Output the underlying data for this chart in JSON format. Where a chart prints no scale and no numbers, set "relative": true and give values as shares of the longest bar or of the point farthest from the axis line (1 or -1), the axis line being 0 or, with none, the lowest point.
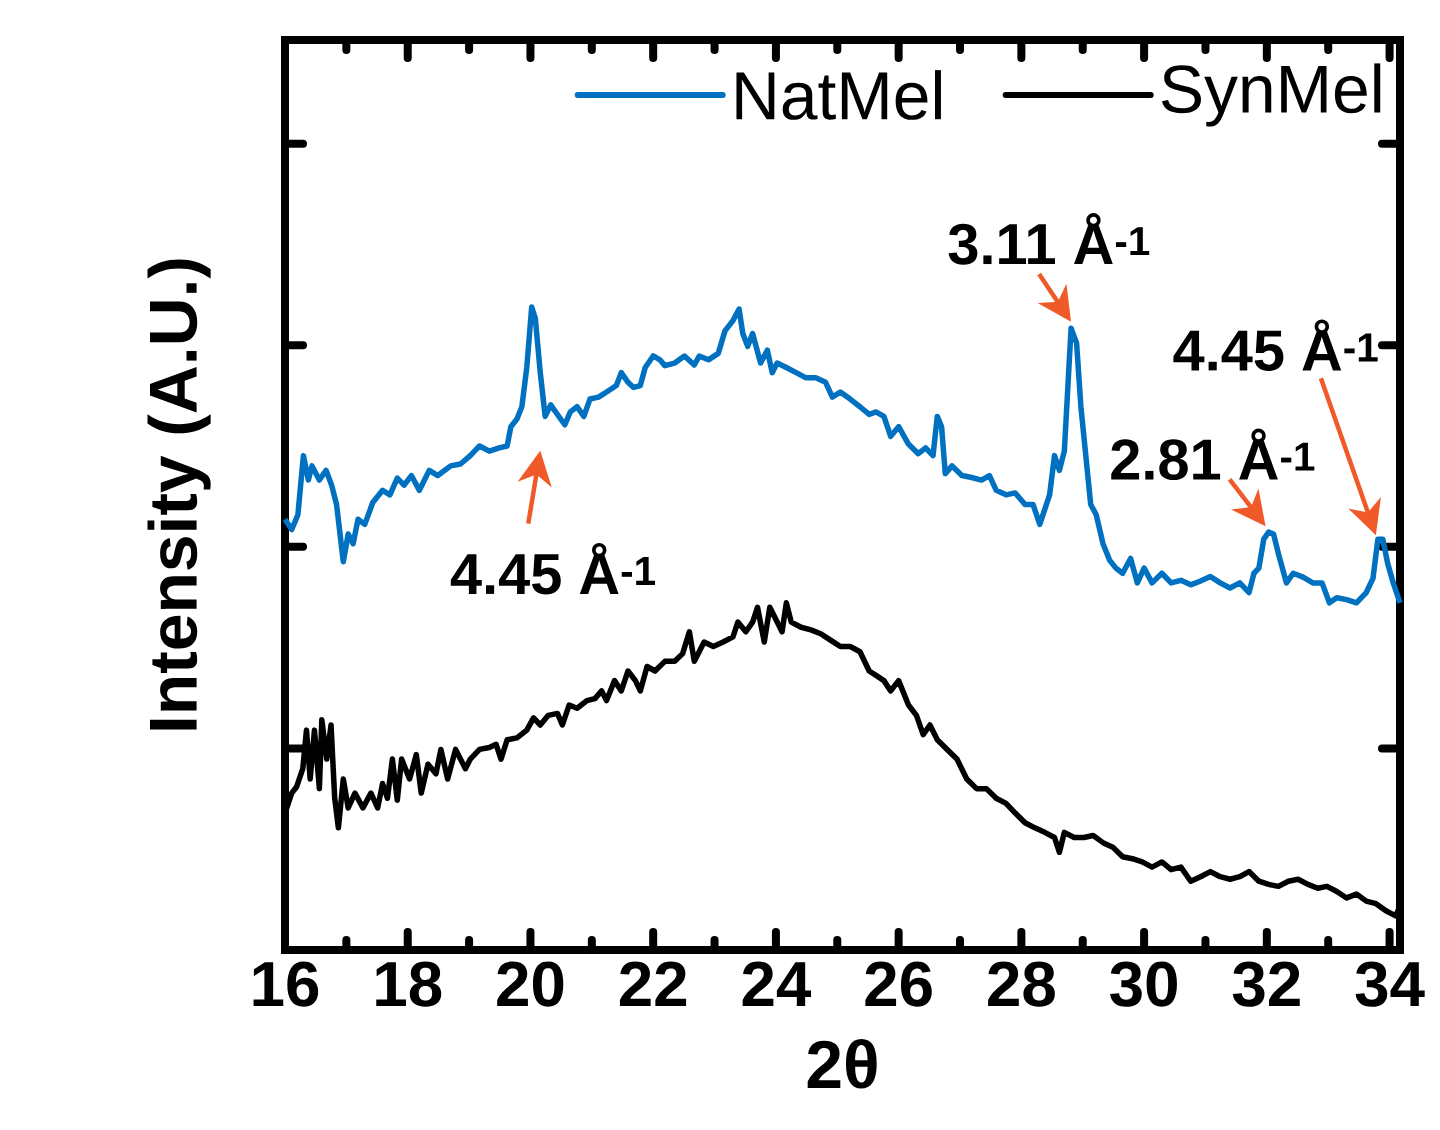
{
  "chart_data": {
    "type": "line",
    "xlabel": "2θ",
    "ylabel": "Intensity (A.U.)",
    "relative": true,
    "legend": "top right",
    "xlim": [
      16,
      34.17
    ],
    "xticks": [
      16,
      18,
      20,
      22,
      24,
      26,
      28,
      30,
      32,
      34
    ],
    "series": [
      {
        "name": "NatMel",
        "color": "#0070c0",
        "x": [
          16.0,
          16.11,
          16.21,
          16.3,
          16.38,
          16.44,
          16.56,
          16.67,
          16.76,
          16.84,
          16.95,
          17.03,
          17.11,
          17.19,
          17.3,
          17.43,
          17.59,
          17.71,
          17.83,
          17.94,
          18.06,
          18.19,
          18.35,
          18.49,
          18.7,
          18.86,
          19.02,
          19.17,
          19.33,
          19.49,
          19.62,
          19.68,
          19.78,
          19.86,
          19.94,
          20.02,
          20.08,
          20.16,
          20.24,
          20.33,
          20.44,
          20.56,
          20.65,
          20.76,
          20.87,
          20.97,
          21.11,
          21.24,
          21.4,
          21.48,
          21.59,
          21.68,
          21.79,
          21.87,
          22.0,
          22.11,
          22.19,
          22.35,
          22.51,
          22.67,
          22.75,
          22.9,
          23.06,
          23.17,
          23.3,
          23.4,
          23.46,
          23.54,
          23.62,
          23.75,
          23.86,
          23.94,
          24.02,
          24.17,
          24.33,
          24.49,
          24.65,
          24.81,
          24.92,
          25.05,
          25.21,
          25.37,
          25.52,
          25.63,
          25.76,
          25.87,
          26.0,
          26.16,
          26.32,
          26.44,
          26.56,
          26.63,
          26.7,
          26.76,
          26.87,
          27.03,
          27.19,
          27.35,
          27.48,
          27.59,
          27.75,
          27.9,
          28.06,
          28.19,
          28.3,
          28.38,
          28.46,
          28.54,
          28.62,
          28.7,
          28.81,
          28.9,
          28.97,
          29.05,
          29.13,
          29.22,
          29.33,
          29.44,
          29.54,
          29.65,
          29.78,
          29.89,
          30.0,
          30.13,
          30.29,
          30.44,
          30.6,
          30.76,
          30.92,
          31.08,
          31.24,
          31.4,
          31.56,
          31.71,
          31.79,
          31.87,
          31.95,
          32.03,
          32.11,
          32.19,
          32.32,
          32.43,
          32.59,
          32.75,
          32.9,
          33.02,
          33.14,
          33.3,
          33.46,
          33.62,
          33.73,
          33.81,
          33.89,
          33.97,
          34.06,
          34.17
        ],
        "values": [
          0.67,
          0.654,
          0.677,
          0.769,
          0.731,
          0.753,
          0.731,
          0.746,
          0.723,
          0.693,
          0.604,
          0.647,
          0.632,
          0.67,
          0.662,
          0.696,
          0.715,
          0.708,
          0.734,
          0.723,
          0.738,
          0.715,
          0.746,
          0.738,
          0.753,
          0.756,
          0.769,
          0.784,
          0.776,
          0.781,
          0.784,
          0.814,
          0.826,
          0.845,
          0.906,
          1.0,
          0.982,
          0.898,
          0.83,
          0.848,
          0.833,
          0.817,
          0.837,
          0.845,
          0.83,
          0.857,
          0.86,
          0.868,
          0.878,
          0.898,
          0.883,
          0.875,
          0.878,
          0.906,
          0.924,
          0.918,
          0.909,
          0.913,
          0.924,
          0.91,
          0.924,
          0.918,
          0.928,
          0.963,
          0.979,
          0.997,
          0.959,
          0.939,
          0.959,
          0.913,
          0.933,
          0.898,
          0.913,
          0.906,
          0.898,
          0.89,
          0.89,
          0.883,
          0.86,
          0.868,
          0.857,
          0.845,
          0.833,
          0.837,
          0.83,
          0.799,
          0.814,
          0.787,
          0.772,
          0.781,
          0.769,
          0.83,
          0.814,
          0.741,
          0.753,
          0.738,
          0.735,
          0.731,
          0.738,
          0.715,
          0.708,
          0.711,
          0.693,
          0.693,
          0.662,
          0.685,
          0.708,
          0.769,
          0.746,
          0.776,
          0.967,
          0.944,
          0.845,
          0.769,
          0.693,
          0.677,
          0.632,
          0.606,
          0.594,
          0.586,
          0.609,
          0.571,
          0.594,
          0.571,
          0.586,
          0.571,
          0.575,
          0.568,
          0.574,
          0.581,
          0.571,
          0.563,
          0.571,
          0.556,
          0.586,
          0.594,
          0.639,
          0.65,
          0.647,
          0.616,
          0.571,
          0.586,
          0.58,
          0.571,
          0.571,
          0.54,
          0.548,
          0.545,
          0.54,
          0.556,
          0.578,
          0.639,
          0.639,
          0.601,
          0.571,
          0.54
        ]
      },
      {
        "name": "SynMel",
        "color": "#000000",
        "x": [
          16.0,
          16.11,
          16.19,
          16.29,
          16.35,
          16.41,
          16.48,
          16.56,
          16.6,
          16.68,
          16.75,
          16.81,
          16.87,
          16.95,
          17.03,
          17.14,
          17.27,
          17.4,
          17.51,
          17.59,
          17.67,
          17.75,
          17.83,
          17.9,
          18.03,
          18.14,
          18.22,
          18.33,
          18.46,
          18.54,
          18.65,
          18.78,
          18.94,
          19.02,
          19.17,
          19.33,
          19.44,
          19.52,
          19.62,
          19.78,
          19.94,
          20.05,
          20.16,
          20.29,
          20.44,
          20.52,
          20.63,
          20.76,
          20.92,
          21.05,
          21.16,
          21.24,
          21.37,
          21.48,
          21.59,
          21.71,
          21.79,
          21.9,
          22.03,
          22.19,
          22.35,
          22.48,
          22.59,
          22.67,
          22.83,
          22.98,
          23.14,
          23.3,
          23.38,
          23.51,
          23.62,
          23.7,
          23.81,
          23.9,
          23.98,
          24.1,
          24.17,
          24.25,
          24.41,
          24.57,
          24.73,
          24.89,
          25.05,
          25.21,
          25.37,
          25.52,
          25.65,
          25.76,
          25.87,
          26.0,
          26.16,
          26.29,
          26.4,
          26.51,
          26.63,
          26.79,
          26.95,
          27.11,
          27.27,
          27.43,
          27.59,
          27.75,
          27.9,
          28.06,
          28.22,
          28.38,
          28.54,
          28.62,
          28.7,
          28.86,
          29.02,
          29.17,
          29.33,
          29.49,
          29.65,
          29.81,
          29.97,
          30.13,
          30.29,
          30.44,
          30.6,
          30.76,
          30.92,
          31.08,
          31.24,
          31.4,
          31.56,
          31.71,
          31.87,
          32.03,
          32.19,
          32.35,
          32.51,
          32.67,
          32.83,
          32.98,
          33.14,
          33.3,
          33.46,
          33.62,
          33.78,
          33.94,
          34.1,
          34.17
        ],
        "values": [
          0.213,
          0.244,
          0.254,
          0.282,
          0.342,
          0.266,
          0.342,
          0.251,
          0.358,
          0.297,
          0.35,
          0.236,
          0.19,
          0.266,
          0.221,
          0.244,
          0.221,
          0.244,
          0.221,
          0.259,
          0.236,
          0.297,
          0.233,
          0.297,
          0.266,
          0.304,
          0.244,
          0.289,
          0.274,
          0.312,
          0.266,
          0.312,
          0.282,
          0.297,
          0.312,
          0.315,
          0.32,
          0.297,
          0.327,
          0.33,
          0.342,
          0.361,
          0.35,
          0.365,
          0.368,
          0.35,
          0.381,
          0.376,
          0.388,
          0.391,
          0.403,
          0.388,
          0.419,
          0.403,
          0.434,
          0.419,
          0.403,
          0.441,
          0.434,
          0.449,
          0.449,
          0.461,
          0.495,
          0.449,
          0.479,
          0.472,
          0.479,
          0.487,
          0.51,
          0.495,
          0.51,
          0.533,
          0.479,
          0.533,
          0.518,
          0.495,
          0.54,
          0.51,
          0.502,
          0.498,
          0.492,
          0.482,
          0.472,
          0.472,
          0.464,
          0.434,
          0.426,
          0.419,
          0.403,
          0.419,
          0.381,
          0.365,
          0.335,
          0.35,
          0.327,
          0.312,
          0.297,
          0.266,
          0.251,
          0.251,
          0.236,
          0.228,
          0.213,
          0.198,
          0.19,
          0.183,
          0.175,
          0.152,
          0.183,
          0.175,
          0.175,
          0.178,
          0.167,
          0.16,
          0.145,
          0.142,
          0.137,
          0.129,
          0.137,
          0.125,
          0.129,
          0.107,
          0.114,
          0.122,
          0.114,
          0.11,
          0.114,
          0.122,
          0.107,
          0.102,
          0.099,
          0.107,
          0.11,
          0.102,
          0.096,
          0.099,
          0.091,
          0.081,
          0.087,
          0.076,
          0.072,
          0.061,
          0.053,
          0.068
        ]
      }
    ],
    "annotations": [
      {
        "text": "4.45 Å$^{-1}$",
        "x": 20.16,
        "y": 0.898
      },
      {
        "text": "3.11 Å$^{-1}$",
        "x": 28.81,
        "y": 0.977
      },
      {
        "text": "2.81 Å$^{-1}$",
        "x": 31.98,
        "y": 0.659
      },
      {
        "text": "4.45 Å$^{-1}$",
        "x": 33.81,
        "y": 0.639
      }
    ]
  }
}
